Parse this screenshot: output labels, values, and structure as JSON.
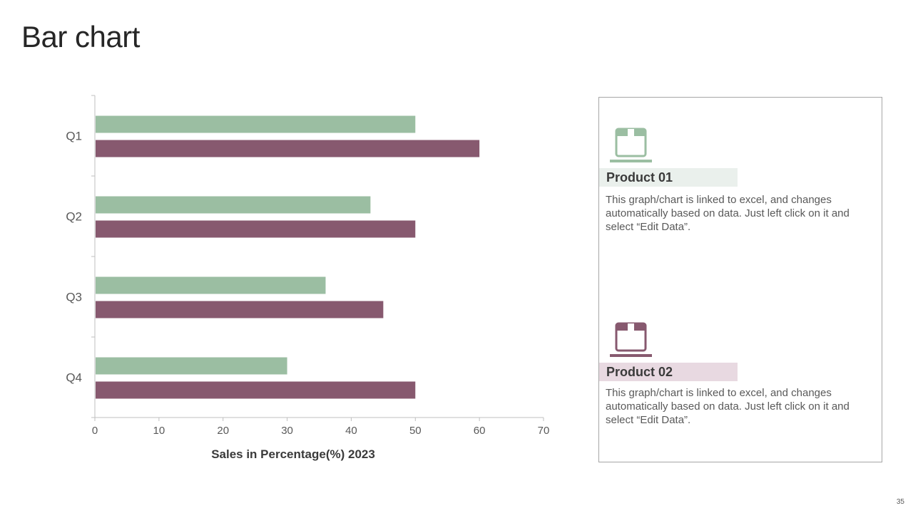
{
  "page": {
    "title": "Bar chart",
    "page_number": "35"
  },
  "colors": {
    "product01": "#9bbea2",
    "product02": "#87596f",
    "product01_bg": "#eaf0ec",
    "product02_bg": "#e8d9e1"
  },
  "chart_data": {
    "type": "bar",
    "orientation": "horizontal",
    "categories": [
      "Q1",
      "Q2",
      "Q3",
      "Q4"
    ],
    "series": [
      {
        "name": "Product 01",
        "values": [
          50,
          43,
          36,
          30
        ]
      },
      {
        "name": "Product 02",
        "values": [
          60,
          50,
          45,
          50
        ]
      }
    ],
    "xlabel": "Sales in Percentage(%) 2023",
    "ylabel": "",
    "xlim": [
      0,
      70
    ],
    "xticks": [
      0,
      10,
      20,
      30,
      40,
      50,
      60,
      70
    ],
    "grid": false,
    "legend": "right-side panel"
  },
  "legend_panel": {
    "items": [
      {
        "title": "Product 01",
        "icon": "box-icon",
        "description": "This graph/chart is linked to excel, and changes automatically based on data. Just left click on it and select “Edit Data”."
      },
      {
        "title": "Product 02",
        "icon": "box-icon",
        "description": "This graph/chart is linked to excel, and changes automatically based on data. Just left click on it and select “Edit Data”."
      }
    ]
  }
}
